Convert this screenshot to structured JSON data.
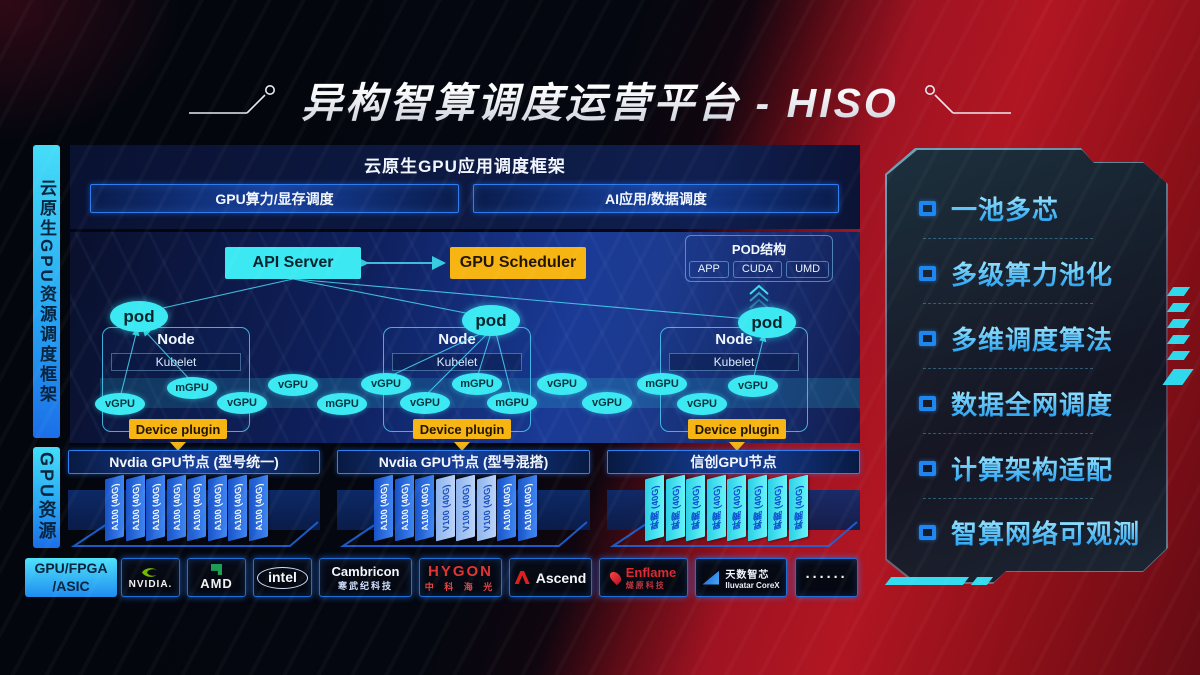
{
  "title": "异构智算调度运营平台 - HISO",
  "left_rail": {
    "framework_label": "云原生GPU资源调度框架",
    "resource_label": "GPU资源",
    "hardware_label": "GPU/FPGA\n/ASIC"
  },
  "scheduler_panel": {
    "title": "云原生GPU应用调度框架",
    "bars": {
      "gpu": "GPU算力/显存调度",
      "ai": "AI应用/数据调度"
    }
  },
  "control_plane": {
    "api_server": "API Server",
    "gpu_scheduler": "GPU Scheduler",
    "pod_struct": {
      "title": "POD结构",
      "cells": [
        "APP",
        "CUDA",
        "UMD"
      ]
    }
  },
  "pods": [
    "pod",
    "pod",
    "pod"
  ],
  "nodes": [
    {
      "label": "Node",
      "kubelet": "Kubelet",
      "device_plugin": "Device plugin"
    },
    {
      "label": "Node",
      "kubelet": "Kubelet",
      "device_plugin": "Device plugin"
    },
    {
      "label": "Node",
      "kubelet": "Kubelet",
      "device_plugin": "Device plugin"
    }
  ],
  "gpu_ellipses": [
    "vGPU",
    "mGPU",
    "vGPU",
    "vGPU",
    "mGPU",
    "vGPU",
    "vGPU",
    "mGPU",
    "mGPU",
    "vGPU",
    "vGPU",
    "mGPU",
    "vGPU",
    "vGPU"
  ],
  "gpu_groups": [
    {
      "title": "Nvdia GPU节点 (型号统一)",
      "cards": [
        {
          "label": "A100 (40G)",
          "variant": "a100"
        },
        {
          "label": "A100 (40G)",
          "variant": "a100"
        },
        {
          "label": "A100 (40G)",
          "variant": "a100"
        },
        {
          "label": "A100 (40G)",
          "variant": "a100"
        },
        {
          "label": "A100 (40G)",
          "variant": "a100"
        },
        {
          "label": "A100 (40G)",
          "variant": "a100"
        },
        {
          "label": "A100 (40G)",
          "variant": "a100"
        },
        {
          "label": "A100 (40G)",
          "variant": "a100"
        }
      ]
    },
    {
      "title": "Nvdia GPU节点 (型号混搭)",
      "cards": [
        {
          "label": "A100 (40G)",
          "variant": "a100"
        },
        {
          "label": "A100 (40G)",
          "variant": "a100"
        },
        {
          "label": "A100 (40G)",
          "variant": "a100"
        },
        {
          "label": "V100 (40G)",
          "variant": "v100"
        },
        {
          "label": "V100 (40G)",
          "variant": "v100"
        },
        {
          "label": "V100 (40G)",
          "variant": "v100"
        },
        {
          "label": "A100 (40G)",
          "variant": "a100"
        },
        {
          "label": "A100 (40G)",
          "variant": "a100"
        }
      ]
    },
    {
      "title": "信创GPU节点",
      "cards": [
        {
          "label": "昇腾 (40G)",
          "variant": "ascend"
        },
        {
          "label": "昇腾 (40G)",
          "variant": "ascend"
        },
        {
          "label": "昇腾 (40G)",
          "variant": "ascend"
        },
        {
          "label": "昇腾 (40G)",
          "variant": "ascend"
        },
        {
          "label": "昇腾 (40G)",
          "variant": "ascend"
        },
        {
          "label": "昇腾 (40G)",
          "variant": "ascend"
        },
        {
          "label": "昇腾 (40G)",
          "variant": "ascend"
        },
        {
          "label": "昇腾 (40G)",
          "variant": "ascend"
        }
      ]
    }
  ],
  "vendors": {
    "nvidia": {
      "name": "NVIDIA."
    },
    "amd": {
      "name": "AMD"
    },
    "intel": {
      "name": "intel"
    },
    "cambricon": {
      "name": "Cambricon",
      "sub": "寒武纪科技"
    },
    "hygon": {
      "name": "HYGON",
      "sub": "中 科 海 光"
    },
    "ascend": {
      "name": "Ascend"
    },
    "enflame": {
      "name": "Enflame",
      "sub": "燧原科技"
    },
    "iluvatar": {
      "name": "天数智芯",
      "sub": "Iluvatar CoreX"
    },
    "more": {
      "name": "······"
    }
  },
  "features": [
    "一池多芯",
    "多级算力池化",
    "多维调度算法",
    "数据全网调度",
    "计算架构适配",
    "智算网络可观测"
  ],
  "colors": {
    "accent_cyan": "#3ce9f3",
    "accent_yellow": "#f6b513",
    "bar_border_blue": "#2f7ff5",
    "card_blue": "#2268e8",
    "card_light_blue": "#a9c6f4",
    "card_cyan": "#45eef0",
    "background_red": "#a81420",
    "feature_blue": "#2ba4f2",
    "nvidia_green": "#76b900",
    "amd_green": "#1d9e57",
    "hygon_red": "#e03434",
    "enflame_red": "#e02830"
  }
}
